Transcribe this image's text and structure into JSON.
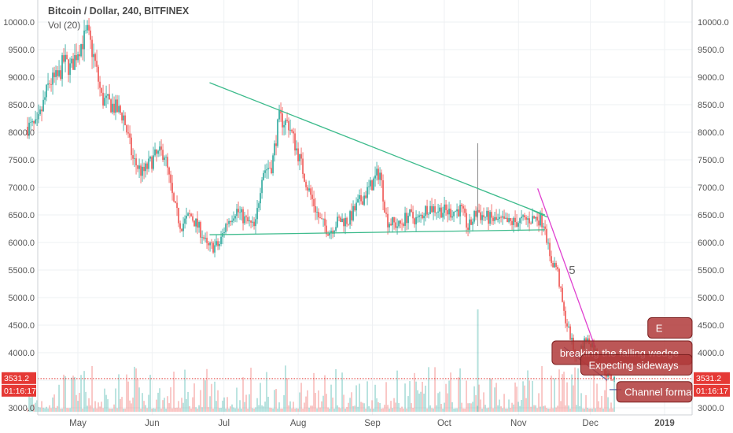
{
  "header": {
    "title": "Bitcoin / Dollar, 240, BITFINEX",
    "volume_label": "Vol (20)"
  },
  "colors": {
    "up": "#26a69a",
    "down": "#ef5350",
    "wedge_line": "#3dbb8c",
    "breakout_line": "#e040d0",
    "callout_fill": "#b03a3a",
    "price_line": "#e53935",
    "grid": "#eef0f3"
  },
  "chart_data": {
    "type": "candlestick",
    "symbol": "Bitcoin / Dollar",
    "interval": "240",
    "exchange": "BITFINEX",
    "ylim": [
      2880,
      10180
    ],
    "y_ticks": [
      "3000.0",
      "3500.0",
      "4000.0",
      "4500.0",
      "5000.0",
      "5500.0",
      "6000.0",
      "6500.0",
      "7000.0",
      "7500.0",
      "8000.0",
      "8500.0",
      "9000.0",
      "9500.0",
      "10000.0"
    ],
    "x_ticks": [
      "May",
      "Jun",
      "Jul",
      "Aug",
      "Sep",
      "Oct",
      "Nov",
      "Dec",
      "2019"
    ],
    "grid": true,
    "price_path": [
      [
        "2018-04-10",
        8100
      ],
      [
        "2018-04-14",
        8100
      ],
      [
        "2018-04-19",
        8900
      ],
      [
        "2018-04-23",
        9000
      ],
      [
        "2018-04-25",
        9300
      ],
      [
        "2018-04-28",
        9150
      ],
      [
        "2018-05-01",
        9500
      ],
      [
        "2018-05-05",
        9800
      ],
      [
        "2018-05-08",
        9300
      ],
      [
        "2018-05-11",
        8600
      ],
      [
        "2018-05-15",
        8500
      ],
      [
        "2018-05-20",
        8300
      ],
      [
        "2018-05-24",
        7500
      ],
      [
        "2018-05-28",
        7250
      ],
      [
        "2018-06-02",
        7550
      ],
      [
        "2018-06-06",
        7650
      ],
      [
        "2018-06-10",
        6700
      ],
      [
        "2018-06-13",
        6300
      ],
      [
        "2018-06-17",
        6500
      ],
      [
        "2018-06-22",
        6150
      ],
      [
        "2018-06-24",
        5900
      ],
      [
        "2018-06-29",
        5950
      ],
      [
        "2018-07-02",
        6350
      ],
      [
        "2018-07-06",
        6600
      ],
      [
        "2018-07-10",
        6400
      ],
      [
        "2018-07-14",
        6250
      ],
      [
        "2018-07-17",
        7300
      ],
      [
        "2018-07-21",
        7400
      ],
      [
        "2018-07-24",
        8250
      ],
      [
        "2018-07-28",
        8150
      ],
      [
        "2018-08-01",
        7600
      ],
      [
        "2018-08-05",
        7000
      ],
      [
        "2018-08-10",
        6400
      ],
      [
        "2018-08-14",
        6200
      ],
      [
        "2018-08-18",
        6400
      ],
      [
        "2018-08-22",
        6400
      ],
      [
        "2018-08-26",
        6700
      ],
      [
        "2018-08-31",
        7000
      ],
      [
        "2018-09-04",
        7300
      ],
      [
        "2018-09-07",
        6400
      ],
      [
        "2018-09-12",
        6300
      ],
      [
        "2018-09-16",
        6500
      ],
      [
        "2018-09-20",
        6400
      ],
      [
        "2018-09-24",
        6650
      ],
      [
        "2018-09-28",
        6600
      ],
      [
        "2018-10-03",
        6550
      ],
      [
        "2018-10-08",
        6600
      ],
      [
        "2018-10-11",
        6250
      ],
      [
        "2018-10-15",
        6600
      ],
      [
        "2018-10-16",
        6500
      ],
      [
        "2018-10-22",
        6400
      ],
      [
        "2018-10-28",
        6350
      ],
      [
        "2018-11-03",
        6400
      ],
      [
        "2018-11-09",
        6450
      ],
      [
        "2018-11-12",
        6350
      ],
      [
        "2018-11-14",
        5700
      ],
      [
        "2018-11-17",
        5550
      ],
      [
        "2018-11-20",
        4700
      ],
      [
        "2018-11-22",
        4400
      ],
      [
        "2018-11-25",
        3900
      ],
      [
        "2018-11-29",
        4250
      ],
      [
        "2018-12-02",
        4150
      ],
      [
        "2018-12-06",
        3700
      ],
      [
        "2018-12-09",
        3550
      ],
      [
        "2018-12-11",
        3531
      ]
    ],
    "spikes": [
      {
        "date": "2018-10-15",
        "high": 7800,
        "low": 6300
      }
    ],
    "current_price": "3531.2",
    "countdown": "01:16:17",
    "annotations": [
      {
        "kind": "trendline",
        "name": "wedge-upper",
        "from": [
          "2018-06-25",
          8900
        ],
        "to": [
          "2018-11-12",
          6500
        ]
      },
      {
        "kind": "trendline",
        "name": "wedge-lower",
        "from": [
          "2018-06-25",
          6140
        ],
        "to": [
          "2018-11-12",
          6230
        ]
      },
      {
        "kind": "trendline",
        "name": "wedge-apex",
        "from": [
          "2018-11-04",
          6640
        ],
        "to": [
          "2018-11-13",
          6460
        ]
      },
      {
        "kind": "trendline",
        "name": "breakout-line",
        "from": [
          "2018-11-09",
          6980
        ],
        "to": [
          "2018-12-03",
          4100
        ]
      },
      {
        "kind": "trendline",
        "name": "channel-line",
        "from": [
          "2018-12-09",
          3330
        ],
        "to": [
          "2018-12-14",
          3330
        ]
      },
      {
        "kind": "trendline",
        "name": "channel-low",
        "from": [
          "2018-11-20",
          4100
        ],
        "to": [
          "2018-12-08",
          3500
        ]
      },
      {
        "kind": "label",
        "text": "5",
        "at": [
          "2018-11-22",
          5430
        ]
      }
    ],
    "callouts": [
      {
        "text": "E",
        "at": [
          "2018-12-25",
          4450
        ],
        "to": [
          "2019-01-15",
          4450
        ]
      },
      {
        "text": "breaking the falling wedge",
        "at": [
          "2018-11-15",
          4000
        ],
        "to": [
          "2019-01-15",
          4000
        ]
      },
      {
        "text": "Expecting sideways",
        "at": [
          "2018-11-27",
          3780
        ],
        "to": [
          "2019-01-15",
          3780
        ]
      },
      {
        "text": "Channel formation",
        "at": [
          "2018-12-12",
          3290
        ],
        "to": [
          "2019-01-15",
          3290
        ]
      }
    ]
  }
}
